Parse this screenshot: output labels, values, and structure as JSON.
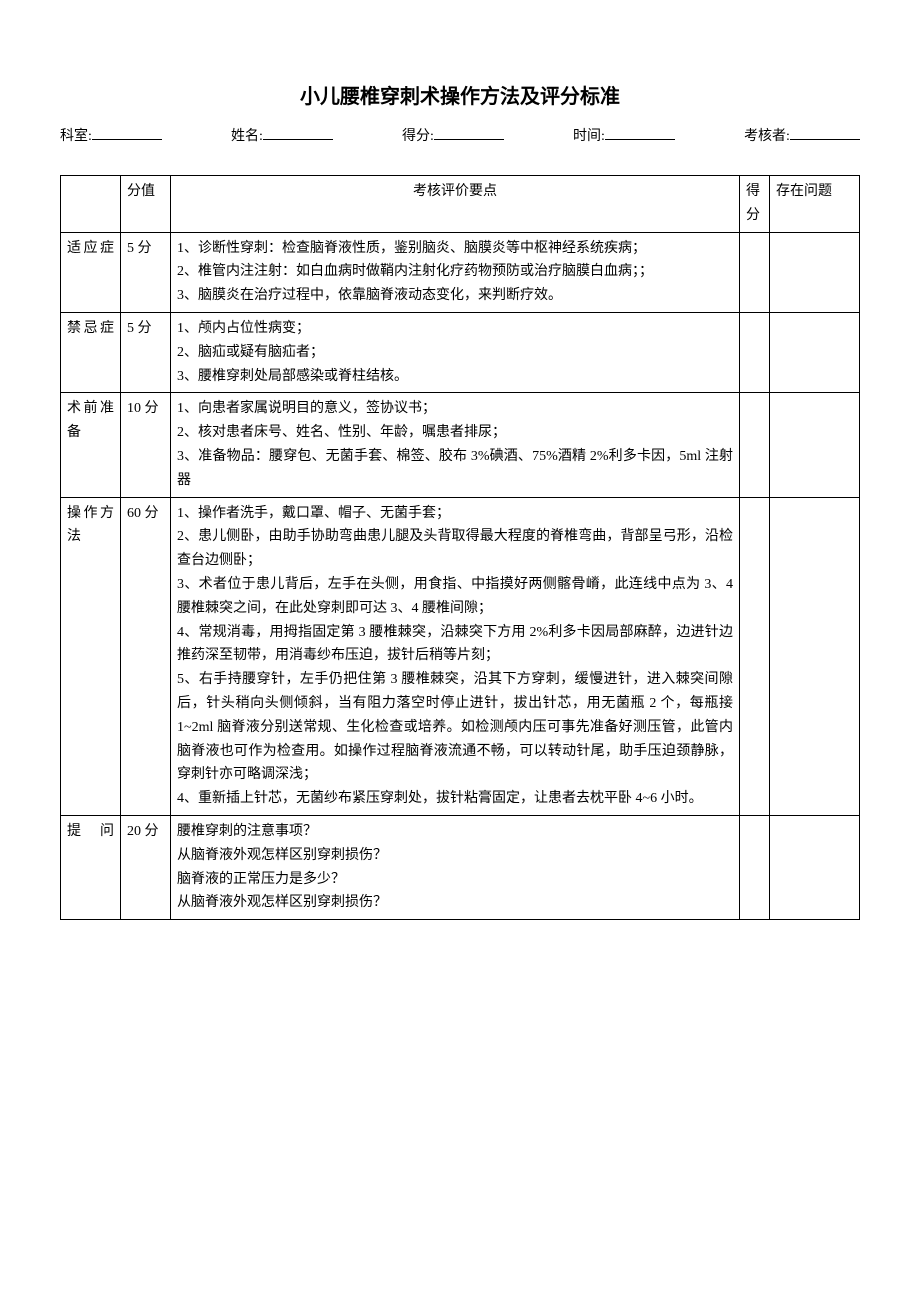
{
  "title": "小儿腰椎穿刺术操作方法及评分标准",
  "header": {
    "dept": "科室:",
    "name": "姓名:",
    "score": "得分:",
    "time": "时间:",
    "examiner": "考核者:"
  },
  "table": {
    "headers": {
      "score_value": "分值",
      "criteria": "考核评价要点",
      "got_score": "得分",
      "issues": "存在问题"
    },
    "rows": [
      {
        "category": "适应症",
        "score": "5 分",
        "criteria": "1、诊断性穿刺：检查脑脊液性质，鉴别脑炎、脑膜炎等中枢神经系统疾病；\n2、椎管内注注射：如白血病时做鞘内注射化疗药物预防或治疗脑膜白血病；；\n3、脑膜炎在治疗过程中，依靠脑脊液动态变化，来判断疗效。"
      },
      {
        "category": "禁忌症",
        "score": "5 分",
        "criteria": "1、颅内占位性病变；\n2、脑疝或疑有脑疝者；\n3、腰椎穿刺处局部感染或脊柱结核。"
      },
      {
        "category": "术前准备",
        "score": "10 分",
        "criteria": "1、向患者家属说明目的意义，签协议书；\n2、核对患者床号、姓名、性别、年龄，嘱患者排尿；\n3、准备物品：腰穿包、无菌手套、棉签、胶布 3%碘酒、75%酒精 2%利多卡因，5ml 注射器"
      },
      {
        "category": "操作方法",
        "score": "60 分",
        "criteria": "1、操作者洗手，戴口罩、帽子、无菌手套；\n2、患儿侧卧，由助手协助弯曲患儿腿及头背取得最大程度的脊椎弯曲，背部呈弓形，沿检查台边侧卧；\n3、术者位于患儿背后，左手在头侧，用食指、中指摸好两侧髂骨嵴，此连线中点为 3、4 腰椎棘突之间，在此处穿刺即可达 3、4 腰椎间隙；\n4、常规消毒，用拇指固定第 3 腰椎棘突，沿棘突下方用 2%利多卡因局部麻醉，边进针边推药深至韧带，用消毒纱布压迫，拔针后稍等片刻；\n5、右手持腰穿针，左手仍把住第 3 腰椎棘突，沿其下方穿刺，缓慢进针，进入棘突间隙后，针头稍向头侧倾斜，当有阻力落空时停止进针，拔出针芯，用无菌瓶 2 个，每瓶接 1~2ml 脑脊液分别送常规、生化检查或培养。如检测颅内压可事先准备好测压管，此管内脑脊液也可作为检查用。如操作过程脑脊液流通不畅，可以转动针尾，助手压迫颈静脉，穿刺针亦可略调深浅；\n4、重新插上针芯，无菌纱布紧压穿刺处，拔针粘膏固定，让患者去枕平卧 4~6 小时。"
      },
      {
        "category": "提问",
        "score": "20 分",
        "criteria": "腰椎穿刺的注意事项？\n从脑脊液外观怎样区别穿刺损伤？\n脑脊液的正常压力是多少？\n从脑脊液外观怎样区别穿刺损伤？"
      }
    ]
  }
}
